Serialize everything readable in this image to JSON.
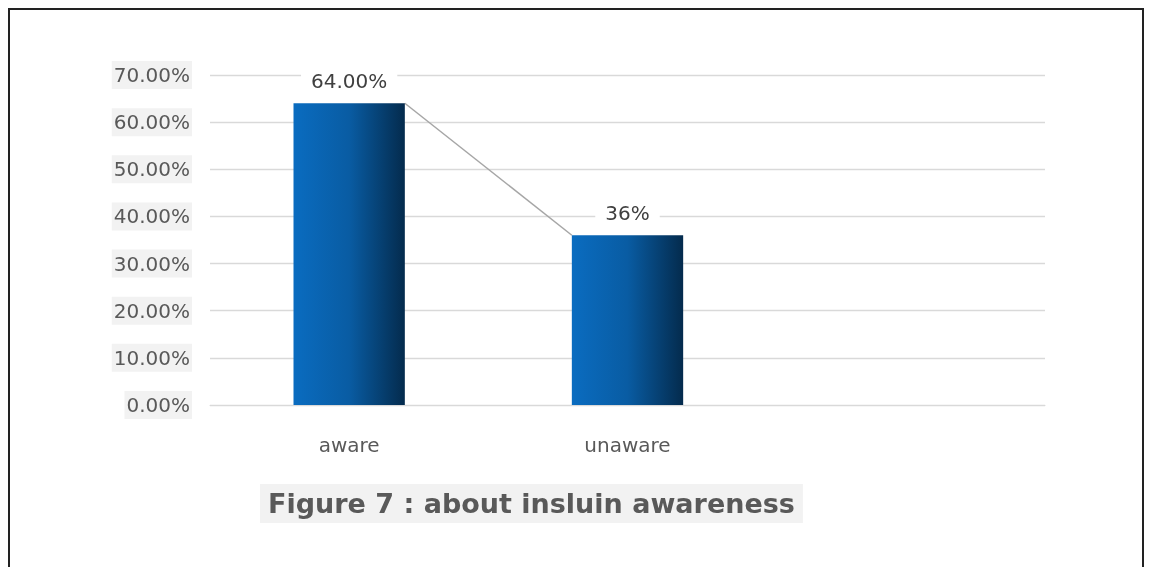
{
  "chart_data": {
    "type": "bar",
    "title": "Figure 7 : about insluin awareness",
    "categories": [
      "aware",
      "unaware",
      null
    ],
    "values": [
      64,
      36,
      null
    ],
    "color": "#0a6cc0",
    "value_labels": [
      "64.00%",
      "36%",
      null
    ],
    "ylim": [
      0,
      70
    ],
    "yticks": [
      {
        "value": 0,
        "label": "0.00%"
      },
      {
        "value": 10,
        "label": "10.00%"
      },
      {
        "value": 20,
        "label": "20.00%"
      },
      {
        "value": 30,
        "label": "30.00%"
      },
      {
        "value": 40,
        "label": "40.00%"
      },
      {
        "value": 50,
        "label": "50.00%"
      },
      {
        "value": 60,
        "label": "60.00%"
      },
      {
        "value": 70,
        "label": "70.00%"
      }
    ],
    "grid": "y"
  }
}
